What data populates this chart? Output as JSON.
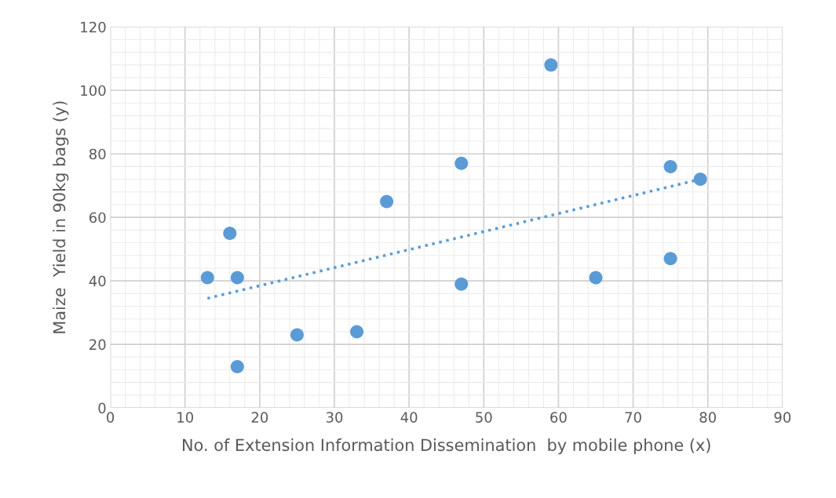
{
  "chart_data": {
    "type": "scatter",
    "xlabel": "No. of Extension Information Dissemination  by mobile phone (x)",
    "ylabel": "Maize  Yield in 90kg bags (y)",
    "series": [
      {
        "color": "#5b9bd5",
        "marker": "circle",
        "x": [
          13,
          16,
          17,
          17,
          25,
          33,
          37,
          47,
          47,
          59,
          65,
          75,
          75,
          79
        ],
        "values": [
          41,
          55,
          41,
          13,
          23,
          24,
          65,
          77,
          39,
          108,
          41,
          76,
          47,
          72
        ]
      },
      {
        "type": "line",
        "color": "#5b9bd5",
        "line_style": "dotted",
        "marker": "none",
        "x": [
          13,
          79
        ],
        "values": [
          34.5,
          72
        ]
      }
    ],
    "xlim": [
      0,
      90
    ],
    "xticks": [
      0,
      10,
      20,
      30,
      40,
      50,
      60,
      70,
      80,
      90
    ],
    "ylim": [
      0,
      120
    ],
    "yticks": [
      0,
      20,
      40,
      60,
      80,
      100,
      120
    ],
    "grid": true
  }
}
